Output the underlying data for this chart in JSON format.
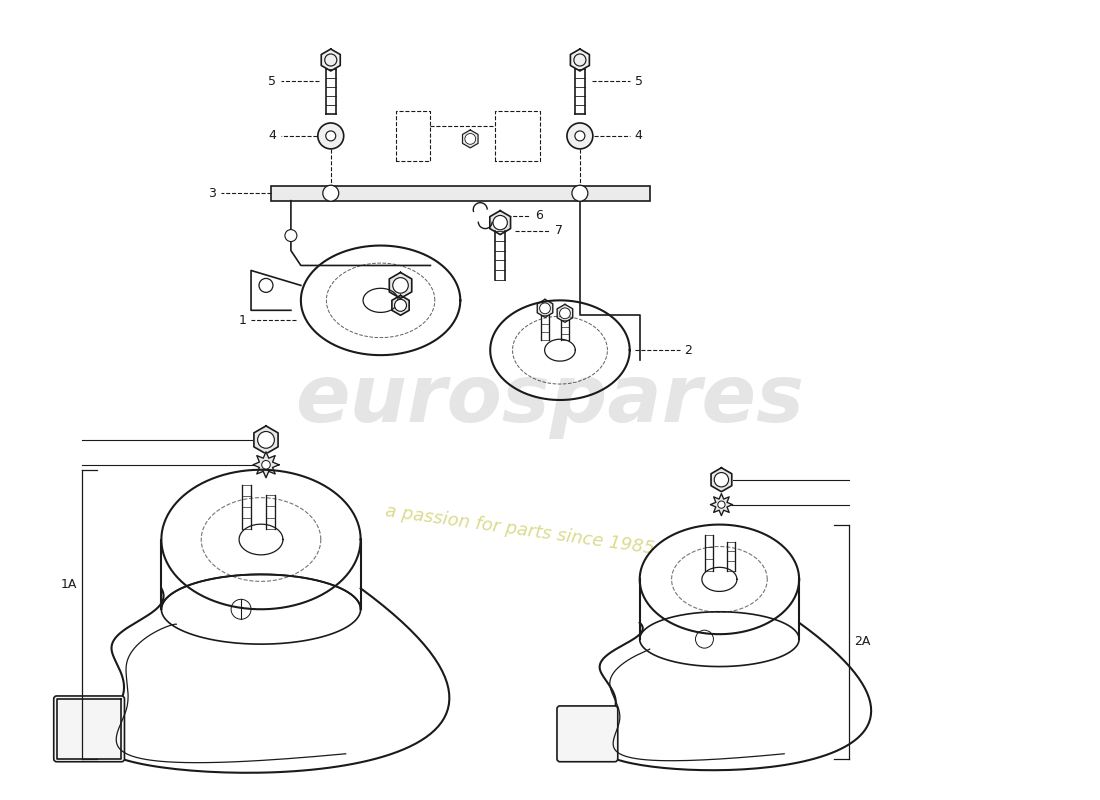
{
  "background_color": "#ffffff",
  "line_color": "#1a1a1a",
  "watermark_text1": "eurospares",
  "watermark_text2": "a passion for parts since 1985",
  "watermark_color": "#c0c0c0",
  "watermark_color2": "#cccc60"
}
